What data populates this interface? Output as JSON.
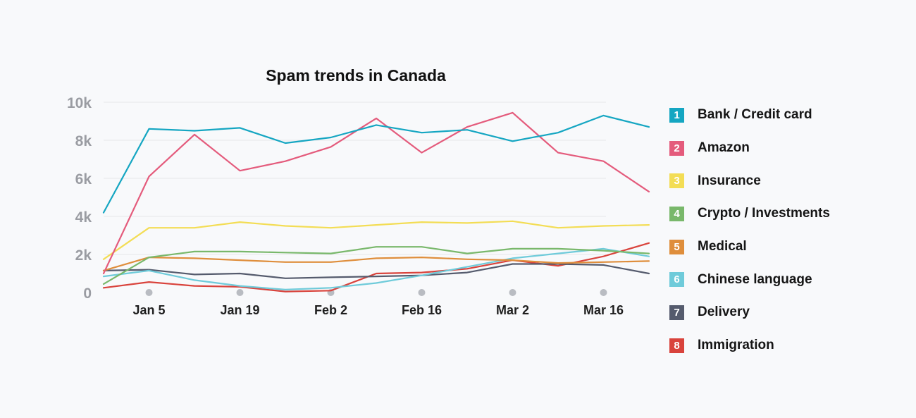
{
  "chart_data": {
    "type": "line",
    "title": "Spam trends in Canada",
    "xlabel": "",
    "ylabel": "",
    "ylim": [
      0,
      10000
    ],
    "y_ticks": [
      {
        "value": 0,
        "label": "0"
      },
      {
        "value": 2000,
        "label": "2k"
      },
      {
        "value": 4000,
        "label": "4k"
      },
      {
        "value": 6000,
        "label": "6k"
      },
      {
        "value": 8000,
        "label": "8k"
      },
      {
        "value": 10000,
        "label": "10k"
      }
    ],
    "x": [
      "Dec 29",
      "Jan 5",
      "Jan 12",
      "Jan 19",
      "Jan 26",
      "Feb 2",
      "Feb 9",
      "Feb 16",
      "Feb 23",
      "Mar 2",
      "Mar 9",
      "Mar 16",
      "Mar 23"
    ],
    "x_ticks": [
      {
        "value": "Jan 5",
        "label": "Jan 5"
      },
      {
        "value": "Jan 19",
        "label": "Jan 19"
      },
      {
        "value": "Feb 2",
        "label": "Feb 2"
      },
      {
        "value": "Feb 16",
        "label": "Feb 16"
      },
      {
        "value": "Mar 2",
        "label": "Mar 2"
      },
      {
        "value": "Mar 16",
        "label": "Mar 16"
      }
    ],
    "grid": true,
    "legend_position": "right",
    "series": [
      {
        "name": "Bank / Credit card",
        "number": "1",
        "color": "#15a6c2",
        "values": [
          4200,
          8600,
          8500,
          8650,
          7850,
          8150,
          8800,
          8400,
          8550,
          7950,
          8400,
          9300,
          8700
        ]
      },
      {
        "name": "Amazon",
        "number": "2",
        "color": "#e45b7c",
        "values": [
          1000,
          6100,
          8300,
          6400,
          6900,
          7650,
          9150,
          7350,
          8700,
          9450,
          7350,
          6900,
          5300
        ]
      },
      {
        "name": "Insurance",
        "number": "3",
        "color": "#f3dd55",
        "values": [
          1750,
          3400,
          3400,
          3700,
          3500,
          3400,
          3550,
          3700,
          3650,
          3750,
          3400,
          3500,
          3550
        ]
      },
      {
        "name": "Crypto / Investments",
        "number": "4",
        "color": "#79b86b",
        "values": [
          450,
          1850,
          2150,
          2150,
          2100,
          2050,
          2400,
          2400,
          2050,
          2300,
          2300,
          2200,
          2050
        ]
      },
      {
        "name": "Medical",
        "number": "5",
        "color": "#df8e3c",
        "values": [
          1150,
          1850,
          1800,
          1700,
          1600,
          1600,
          1800,
          1850,
          1750,
          1700,
          1550,
          1600,
          1650
        ]
      },
      {
        "name": "Chinese language",
        "number": "6",
        "color": "#6fcbda",
        "values": [
          850,
          1150,
          650,
          350,
          150,
          250,
          500,
          900,
          1350,
          1800,
          2050,
          2300,
          1900
        ]
      },
      {
        "name": "Delivery",
        "number": "7",
        "color": "#555b6d",
        "values": [
          1150,
          1200,
          950,
          1000,
          750,
          800,
          850,
          900,
          1050,
          1500,
          1500,
          1450,
          1000
        ]
      },
      {
        "name": "Immigration",
        "number": "8",
        "color": "#d9433c",
        "values": [
          250,
          550,
          350,
          300,
          50,
          100,
          1000,
          1050,
          1250,
          1700,
          1400,
          1900,
          2600
        ]
      }
    ]
  }
}
